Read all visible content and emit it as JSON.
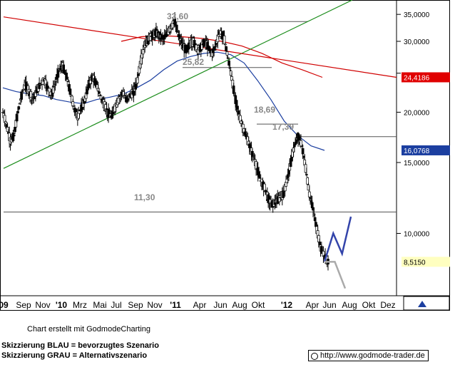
{
  "chart_data": {
    "type": "candlestick-line",
    "title": "",
    "y_axis": {
      "scale": "log",
      "range": [
        7.0,
        38.0
      ],
      "ticks": [
        {
          "value": 35,
          "label": "35,0000"
        },
        {
          "value": 30,
          "label": "30,0000"
        },
        {
          "value": 25,
          "label": ""
        },
        {
          "value": 20,
          "label": "20,0000"
        },
        {
          "value": 15,
          "label": "15,0000"
        },
        {
          "value": 10,
          "label": "10,0000"
        }
      ]
    },
    "x_axis": {
      "labels": [
        "09",
        "Sep",
        "Nov",
        "'10",
        "Mrz",
        "Mai",
        "Jul",
        "Sep",
        "Nov",
        "'11",
        "Apr",
        "Jun",
        "Aug",
        "Okt",
        "'12",
        "Apr",
        "Jun",
        "Aug",
        "Okt",
        "Dez"
      ],
      "bold_labels": [
        "09",
        "'10",
        "'11",
        "'12"
      ]
    },
    "price_markers": [
      {
        "label": "24,4186",
        "value": 24.42,
        "color": "#e00000"
      },
      {
        "label": "16,0768",
        "value": 16.08,
        "color": "#1c3fa0"
      },
      {
        "label": "8,5150",
        "value": 8.5,
        "color": "#ffffc0"
      }
    ],
    "annotations": [
      "33,60",
      "25,82",
      "18,69",
      "17,39",
      "11,30"
    ],
    "levels": [
      {
        "label": "33,60",
        "value": 33.6
      },
      {
        "label": "25,82",
        "value": 25.82
      },
      {
        "label": "18,69",
        "value": 18.69
      },
      {
        "label": "17,39",
        "value": 17.39
      },
      {
        "label": "11,30",
        "value": 11.3
      }
    ],
    "series": [
      {
        "kind": "price",
        "color": "#000000",
        "values": [
          20.0,
          18.5,
          17.0,
          17.5,
          20.0,
          22.0,
          23.5,
          22.5,
          21.5,
          22.5,
          23.5,
          24.0,
          23.0,
          22.0,
          23.5,
          25.5,
          26.0,
          24.5,
          22.5,
          20.5,
          19.5,
          20.5,
          21.5,
          23.5,
          24.5,
          23.5,
          22.0,
          21.0,
          20.0,
          19.5,
          20.5,
          21.5,
          22.5,
          21.5,
          22.0,
          22.5,
          24.0,
          27.0,
          29.5,
          30.5,
          31.0,
          31.5,
          31.0,
          30.5,
          31.5,
          32.5,
          33.6,
          31.0,
          29.5,
          28.5,
          29.5,
          30.0,
          28.5,
          29.0,
          30.0,
          29.0,
          28.0,
          29.5,
          31.5,
          31.0,
          28.0,
          25.0,
          22.0,
          20.0,
          18.5,
          17.5,
          16.5,
          15.5,
          14.5,
          13.5,
          13.0,
          12.2,
          11.8,
          12.0,
          12.2,
          12.5,
          13.5,
          15.0,
          16.5,
          17.39,
          16.5,
          14.5,
          12.5,
          11.5,
          10.2,
          9.2,
          8.8,
          8.51
        ]
      },
      {
        "kind": "sma",
        "color": "#1c3fa0",
        "values": [
          23.0,
          22.5,
          22.2,
          22.0,
          21.5,
          21.2,
          21.0,
          21.5,
          21.8,
          22.2,
          23.0,
          24.0,
          25.5,
          26.8,
          27.5,
          28.0,
          28.2,
          27.8,
          26.5,
          24.0,
          21.5,
          19.0,
          17.5,
          16.5,
          16.08
        ]
      },
      {
        "kind": "sma",
        "color": "#d00000",
        "values": [
          30.0,
          30.8,
          31.0,
          30.8,
          30.5,
          30.0,
          29.2,
          28.0,
          26.5,
          25.5,
          24.42
        ]
      },
      {
        "kind": "trendline",
        "color": "#1a8c1a",
        "values": [
          14.5,
          38.0
        ]
      },
      {
        "kind": "trendline",
        "color": "#d00000",
        "values": [
          34.5,
          24.42
        ]
      },
      {
        "kind": "scenario",
        "name": "Skizzierung BLAU",
        "color": "#3344aa",
        "values": [
          8.5,
          10.0,
          8.9,
          11.0
        ]
      },
      {
        "kind": "scenario",
        "name": "Skizzierung GRAU",
        "color": "#aaaaaa",
        "values": [
          8.5,
          8.5,
          7.3
        ]
      }
    ]
  },
  "footer": {
    "credit": "Chart erstellt mit GodmodeCharting",
    "legend_line1": "Skizzierung BLAU = bevorzugtes Szenario",
    "legend_line2": "Skizzierung GRAU = Alternativszenario",
    "url": "http://www.godmode-trader.de"
  }
}
